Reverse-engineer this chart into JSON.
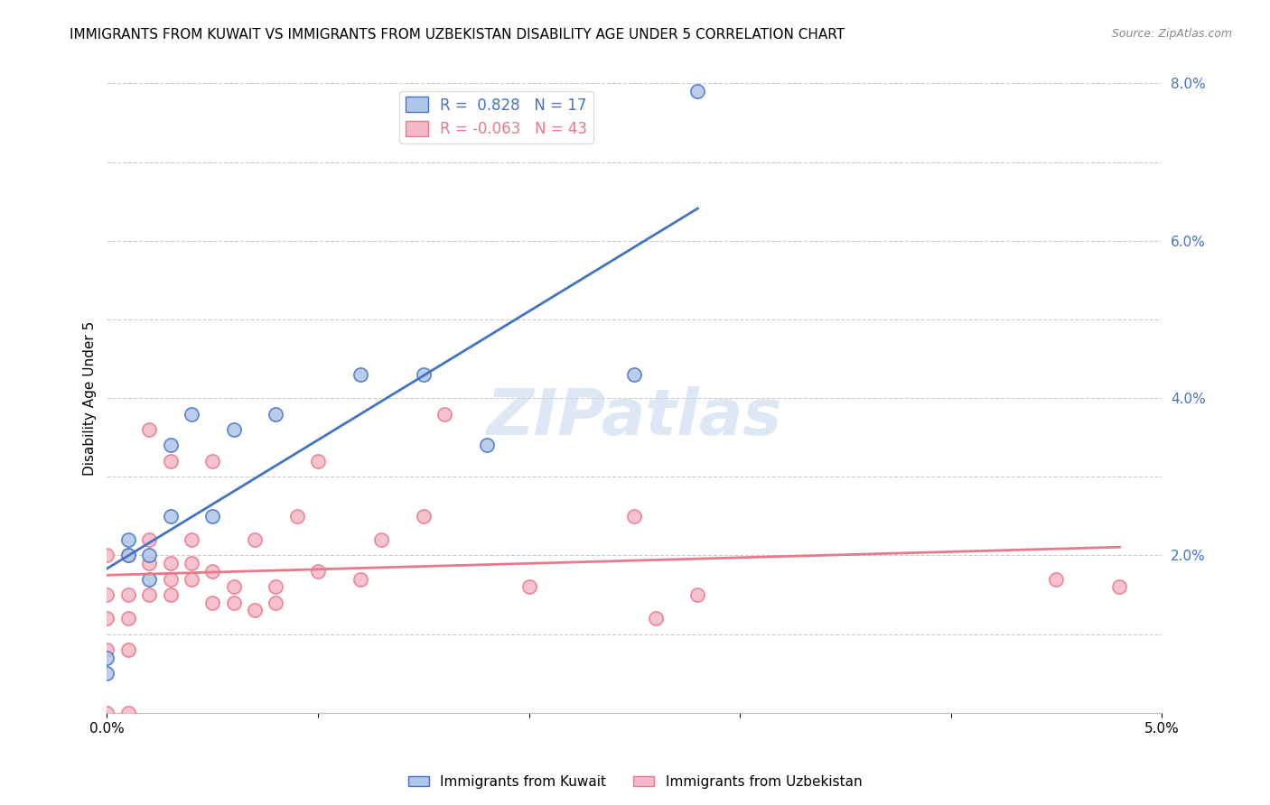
{
  "title": "IMMIGRANTS FROM KUWAIT VS IMMIGRANTS FROM UZBEKISTAN DISABILITY AGE UNDER 5 CORRELATION CHART",
  "source": "Source: ZipAtlas.com",
  "ylabel": "Disability Age Under 5",
  "y_ticks_right": [
    0.0,
    0.02,
    0.04,
    0.06,
    0.08
  ],
  "xlim": [
    0.0,
    0.05
  ],
  "ylim": [
    0.0,
    0.08
  ],
  "kuwait_color": "#aec6e8",
  "uzbekistan_color": "#f5b8c8",
  "kuwait_line_color": "#4472c4",
  "uzbekistan_line_color": "#e8788a",
  "kuwait_R": 0.828,
  "kuwait_N": 17,
  "uzbekistan_R": -0.063,
  "uzbekistan_N": 43,
  "kuwait_points_x": [
    0.0,
    0.0,
    0.001,
    0.001,
    0.002,
    0.002,
    0.003,
    0.003,
    0.004,
    0.005,
    0.006,
    0.008,
    0.012,
    0.015,
    0.018,
    0.025,
    0.028
  ],
  "kuwait_points_y": [
    0.005,
    0.007,
    0.02,
    0.022,
    0.017,
    0.02,
    0.025,
    0.034,
    0.038,
    0.025,
    0.036,
    0.038,
    0.043,
    0.043,
    0.034,
    0.043,
    0.079
  ],
  "uzbekistan_points_x": [
    0.0,
    0.0,
    0.0,
    0.0,
    0.0,
    0.001,
    0.001,
    0.001,
    0.001,
    0.001,
    0.002,
    0.002,
    0.002,
    0.002,
    0.003,
    0.003,
    0.003,
    0.003,
    0.004,
    0.004,
    0.004,
    0.005,
    0.005,
    0.005,
    0.006,
    0.006,
    0.007,
    0.007,
    0.008,
    0.008,
    0.009,
    0.01,
    0.01,
    0.012,
    0.013,
    0.015,
    0.016,
    0.02,
    0.025,
    0.026,
    0.028,
    0.045,
    0.048
  ],
  "uzbekistan_points_y": [
    0.0,
    0.008,
    0.012,
    0.015,
    0.02,
    0.0,
    0.008,
    0.012,
    0.015,
    0.02,
    0.015,
    0.019,
    0.022,
    0.036,
    0.015,
    0.017,
    0.019,
    0.032,
    0.017,
    0.019,
    0.022,
    0.014,
    0.018,
    0.032,
    0.014,
    0.016,
    0.013,
    0.022,
    0.014,
    0.016,
    0.025,
    0.018,
    0.032,
    0.017,
    0.022,
    0.025,
    0.038,
    0.016,
    0.025,
    0.012,
    0.015,
    0.017,
    0.016
  ],
  "watermark_text": "ZIPatlas",
  "background_color": "#ffffff",
  "grid_color": "#cccccc",
  "title_fontsize": 11,
  "axis_label_fontsize": 11,
  "tick_fontsize": 11,
  "legend_fontsize": 12,
  "marker_size": 120
}
